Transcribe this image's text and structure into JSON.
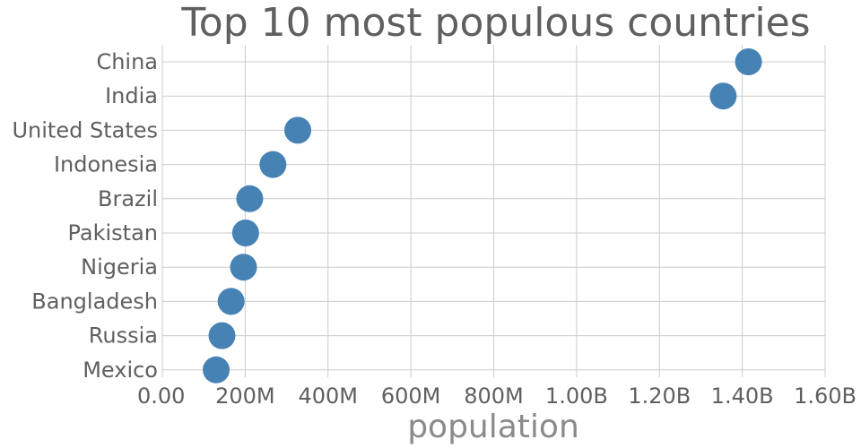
{
  "chart_data": {
    "type": "scatter",
    "title": "Top 10 most populous countries",
    "xlabel": "population",
    "ylabel": "",
    "xlim": [
      0,
      1600000000
    ],
    "x_ticks": [
      0,
      200000000,
      400000000,
      600000000,
      800000000,
      1000000000,
      1200000000,
      1400000000,
      1600000000
    ],
    "x_tick_labels": [
      "0.00",
      "200M",
      "400M",
      "600M",
      "800M",
      "1.00B",
      "1.20B",
      "1.40B",
      "1.60B"
    ],
    "categories": [
      "China",
      "India",
      "United States",
      "Indonesia",
      "Brazil",
      "Pakistan",
      "Nigeria",
      "Bangladesh",
      "Russia",
      "Mexico"
    ],
    "values": [
      1415000000,
      1354000000,
      327000000,
      267000000,
      211000000,
      201000000,
      196000000,
      166000000,
      144000000,
      130000000
    ],
    "marker_color": "#4682b4",
    "grid": true,
    "legend": false
  }
}
